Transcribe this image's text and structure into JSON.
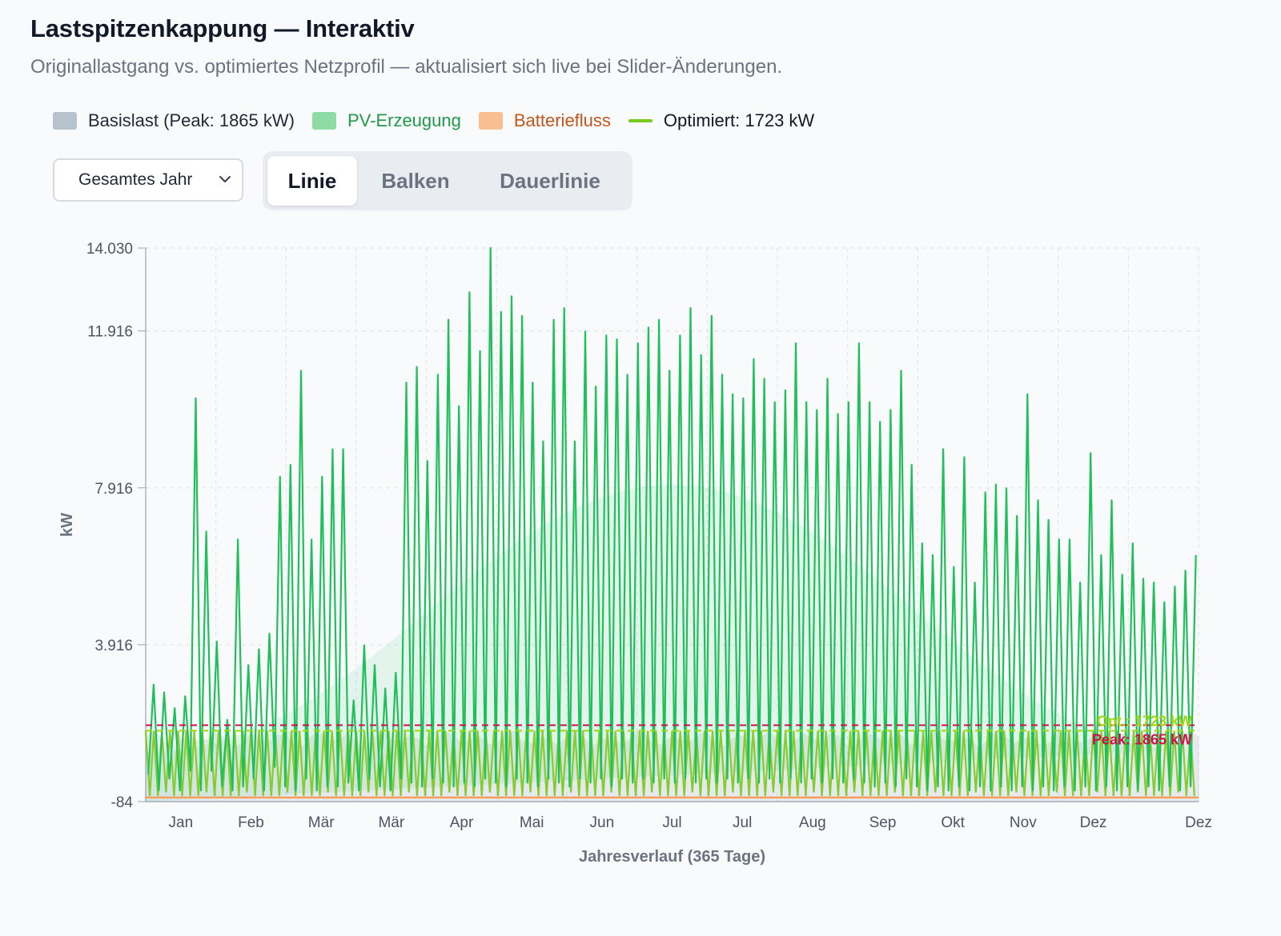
{
  "header": {
    "title": "Lastspitzenkappung — Interaktiv",
    "subtitle": "Originallastgang vs. optimiertes Netzprofil — aktualisiert sich live bei Slider-Änderungen."
  },
  "legend": [
    {
      "label": "Basislast (Peak: 1865 kW)",
      "color": "#b7c2cf",
      "text_color": "#1f2937",
      "kind": "box"
    },
    {
      "label": "PV-Erzeugung",
      "color": "#8ddba5",
      "text_color": "#1f9a4c",
      "kind": "box"
    },
    {
      "label": "Batteriefluss",
      "color": "#f9bf90",
      "text_color": "#c2551b",
      "kind": "box"
    },
    {
      "label": "Optimiert: 1723 kW",
      "color": "#79c91b",
      "text_color": "#111827",
      "kind": "line"
    }
  ],
  "controls": {
    "range_select": {
      "value": "Gesamtes Jahr",
      "icon": "chevron-down-icon"
    },
    "view_tabs": [
      {
        "label": "Linie",
        "active": true
      },
      {
        "label": "Balken",
        "active": false
      },
      {
        "label": "Dauerlinie",
        "active": false
      }
    ]
  },
  "chart_data": {
    "type": "line",
    "xlabel": "Jahresverlauf (365 Tage)",
    "ylabel": "kW",
    "ylim": [
      -84,
      14030
    ],
    "y_ticks": [
      "14.030",
      "11.916",
      "7.916",
      "3.916",
      "-84"
    ],
    "y_tick_values": [
      14030,
      11916,
      7916,
      3916,
      -84
    ],
    "x_ticks": [
      "Jan",
      "Feb",
      "Mär",
      "Mär",
      "Apr",
      "Mai",
      "Jun",
      "Jul",
      "Jul",
      "Aug",
      "Sep",
      "Okt",
      "Nov",
      "Dez",
      "Dez"
    ],
    "x_range_days": [
      0,
      365
    ],
    "grid": true,
    "reference_lines": [
      {
        "name": "Peak",
        "label": "Peak: 1865 kW",
        "value": 1865,
        "color": "#d0104c"
      },
      {
        "name": "Opt",
        "label": "Opt.: 1723 kW",
        "value": 1723,
        "color": "#a3d411"
      }
    ],
    "pv_daily_peaks_kw": [
      600,
      2900,
      200,
      2700,
      500,
      2300,
      200,
      2600,
      700,
      10200,
      200,
      6800,
      700,
      4000,
      300,
      2000,
      200,
      6600,
      300,
      3400,
      500,
      3800,
      200,
      4200,
      800,
      8200,
      300,
      8500,
      200,
      10900,
      500,
      6600,
      200,
      8200,
      300,
      8900,
      300,
      8900,
      400,
      2500,
      200,
      3900,
      500,
      3400,
      300,
      2800,
      200,
      3200,
      500,
      10600,
      400,
      11000,
      300,
      8600,
      500,
      10800,
      400,
      12200,
      300,
      10000,
      400,
      12900,
      300,
      11400,
      500,
      14030,
      400,
      12400,
      300,
      12800,
      500,
      12300,
      400,
      10600,
      300,
      9100,
      500,
      12200,
      400,
      12500,
      300,
      9100,
      500,
      11900,
      400,
      10500,
      500,
      11800,
      300,
      11700,
      500,
      10800,
      400,
      11600,
      500,
      12000,
      400,
      12200,
      500,
      10900,
      400,
      11800,
      500,
      12500,
      400,
      11300,
      500,
      12300,
      400,
      10800,
      500,
      10300,
      400,
      10200,
      500,
      11200,
      400,
      10700,
      500,
      10100,
      400,
      10400,
      500,
      11600,
      400,
      10100,
      500,
      9900,
      400,
      10700,
      500,
      9800,
      400,
      10100,
      500,
      11600,
      400,
      10100,
      300,
      9600,
      400,
      9900,
      300,
      10900,
      500,
      8500,
      300,
      6500,
      200,
      6200,
      300,
      8900,
      200,
      5900,
      300,
      8700,
      200,
      5500,
      300,
      7800,
      200,
      8000,
      300,
      7900,
      200,
      7200,
      300,
      10300,
      200,
      7600,
      300,
      7100,
      200,
      6600,
      300,
      6600,
      200,
      5500,
      300,
      8800,
      200,
      6200,
      300,
      7600,
      200,
      5700,
      300,
      6500,
      200,
      5600,
      300,
      5500,
      200,
      5000,
      300,
      5400,
      200,
      5800,
      300,
      6200
    ]
  }
}
